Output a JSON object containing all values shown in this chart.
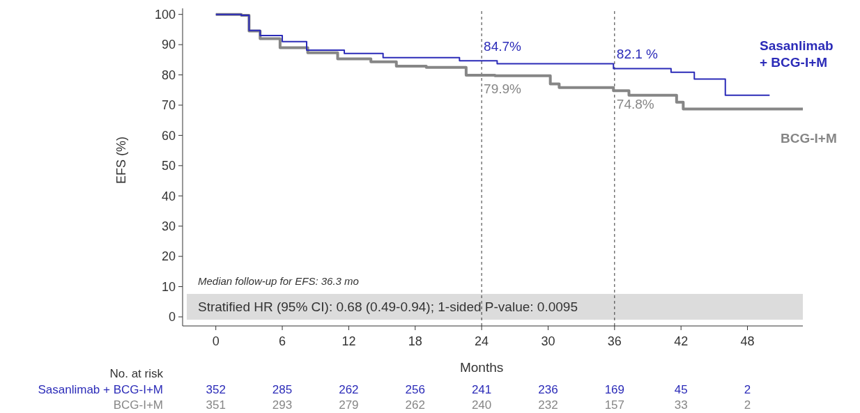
{
  "chart_data": {
    "type": "step",
    "xlabel": "Months",
    "ylabel": "EFS (%)",
    "xlim": [
      -3,
      53
    ],
    "ylim": [
      -3,
      102
    ],
    "xticks": [
      0,
      6,
      12,
      18,
      24,
      30,
      36,
      42,
      48
    ],
    "yticks": [
      0,
      10,
      20,
      30,
      40,
      50,
      60,
      70,
      80,
      90,
      100
    ],
    "grid": false,
    "legend": false,
    "series": [
      {
        "name": "Sasanlimab + BCG-I+M",
        "color": "#2b2bb8",
        "x": [
          0,
          2.3,
          3,
          4,
          6,
          8.2,
          11.6,
          15.1,
          22,
          25.4,
          35.9,
          41.1,
          43.2,
          46,
          50
        ],
        "values": [
          100,
          99.7,
          94.7,
          93,
          91,
          88.2,
          87.1,
          85.7,
          84.7,
          83.7,
          82.1,
          80.9,
          78.6,
          73.3,
          73.3
        ]
      },
      {
        "name": "BCG-I+M",
        "color": "#868686",
        "x": [
          0,
          2.3,
          3,
          4,
          5.8,
          8.3,
          11,
          14,
          16.3,
          19,
          22.6,
          25.2,
          30.2,
          31,
          35.9,
          37.3,
          41.6,
          42.2,
          53
        ],
        "values": [
          100,
          99.7,
          94.5,
          92,
          89,
          87.3,
          85.3,
          84.3,
          82.9,
          82.5,
          79.9,
          79.7,
          77,
          75.8,
          74.8,
          73.3,
          71,
          68.7,
          68.7
        ]
      }
    ],
    "ref_lines": [
      {
        "axis": "x",
        "value": 24,
        "line_style": "dashed",
        "color": "#333333"
      },
      {
        "axis": "x",
        "value": 36,
        "line_style": "dashed",
        "color": "#333333"
      }
    ],
    "annotations": [
      "Median follow-up for EFS: 36.3 mo",
      "Stratified HR (95% CI): 0.68 (0.49-0.94); 1-sided P-value: 0.0095",
      "84.7%",
      "79.9%",
      "82.1 %",
      "74.8%",
      "No. at risk",
      "352",
      "285",
      "262",
      "256",
      "241",
      "236",
      "169",
      "45",
      "2",
      "351",
      "293",
      "279",
      "262",
      "240",
      "232",
      "157",
      "33",
      "2"
    ]
  }
}
